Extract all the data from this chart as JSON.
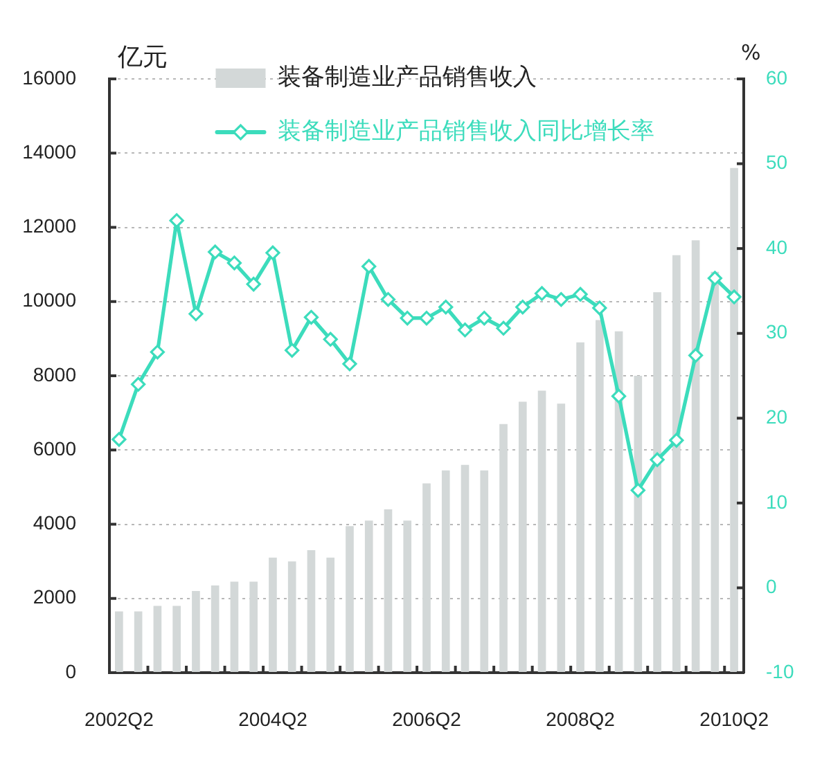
{
  "chart_data": {
    "type": "bar",
    "ylabel": "亿元",
    "y2label": "%",
    "categories": [
      "2002Q2",
      null,
      null,
      null,
      null,
      null,
      null,
      null,
      "2004Q2",
      null,
      null,
      null,
      null,
      null,
      null,
      null,
      "2006Q2",
      null,
      null,
      null,
      null,
      null,
      null,
      null,
      "2008Q2",
      null,
      null,
      null,
      null,
      null,
      null,
      null,
      "2010Q2"
    ],
    "series": [
      {
        "name": "装备制造业产品销售收入",
        "color": "#d3d8d8",
        "values": [
          1650,
          1650,
          1800,
          1800,
          2200,
          2350,
          2450,
          2450,
          3100,
          3000,
          3300,
          3100,
          3950,
          4100,
          4400,
          4100,
          5100,
          5450,
          5600,
          5450,
          6700,
          7300,
          7600,
          7250,
          8900,
          9500,
          9200,
          8000,
          10250,
          11250,
          11650,
          10800,
          13600
        ]
      },
      {
        "name": "装备制造业产品销售收入同比增长率",
        "type": "line",
        "axis": "y2",
        "color": "#3cdcbc",
        "values": [
          17.5,
          24.0,
          27.8,
          43.3,
          32.3,
          39.6,
          38.3,
          35.8,
          39.5,
          28.0,
          31.9,
          29.3,
          26.4,
          37.9,
          34.0,
          31.8,
          31.8,
          33.1,
          30.4,
          31.8,
          30.6,
          33.1,
          34.7,
          34.0,
          34.6,
          33.0,
          22.6,
          11.5,
          15.1,
          17.4,
          27.4,
          36.5,
          34.3
        ]
      }
    ],
    "ylim": [
      0,
      16000
    ],
    "yticks": [
      0,
      2000,
      4000,
      6000,
      8000,
      10000,
      12000,
      14000,
      16000
    ],
    "y2lim": [
      -10,
      60
    ],
    "y2ticks": [
      -10,
      0,
      10,
      20,
      30,
      40,
      50,
      60
    ],
    "grid": "y",
    "legend": "top",
    "marker": "diamond"
  }
}
